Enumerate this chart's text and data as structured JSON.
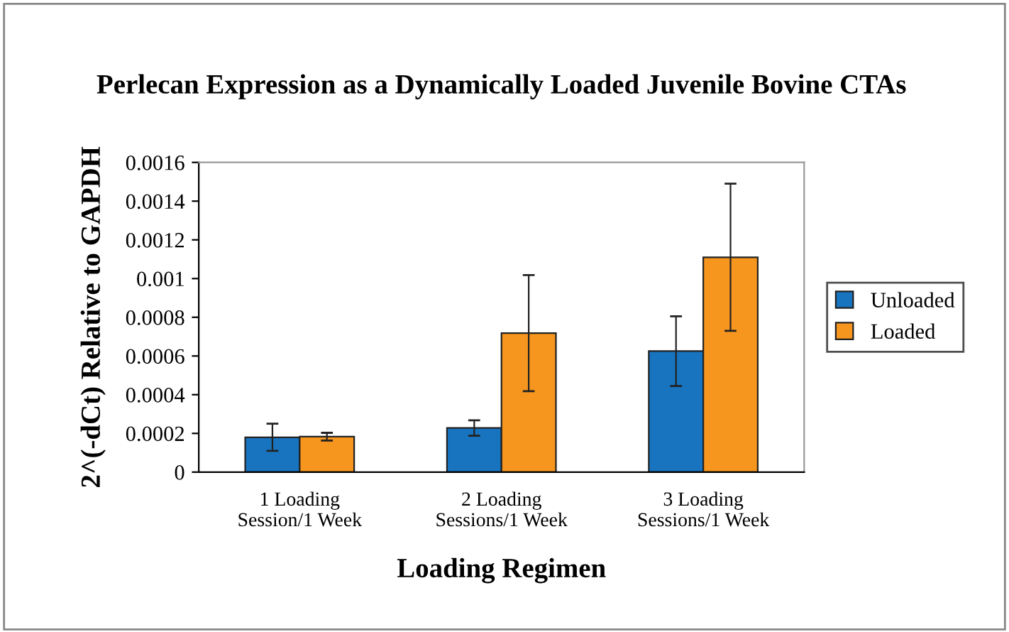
{
  "chart_data": {
    "type": "bar",
    "title": "Perlecan Expression as a Dynamically Loaded Juvenile Bovine CTAs",
    "xlabel": "Loading Regimen",
    "ylabel": "2^(-dCt) Relative to GAPDH",
    "categories": [
      "1 Loading Session/1 Week",
      "2 Loading Sessions/1 Week",
      "3 Loading Sessions/1 Week"
    ],
    "series": [
      {
        "name": "Unloaded",
        "color": "#1874be",
        "values": [
          0.00018,
          0.000228,
          0.000625
        ],
        "errors": [
          7e-05,
          4e-05,
          0.00018
        ]
      },
      {
        "name": "Loaded",
        "color": "#f7961e",
        "values": [
          0.000183,
          0.000718,
          0.00111
        ],
        "errors": [
          2e-05,
          0.0003,
          0.00038
        ]
      }
    ],
    "ylim": [
      0,
      0.0016
    ],
    "yticks": [
      0,
      0.0002,
      0.0004,
      0.0006,
      0.0008,
      0.001,
      0.0012,
      0.0014,
      0.0016
    ],
    "grid": false,
    "legend": "right"
  }
}
